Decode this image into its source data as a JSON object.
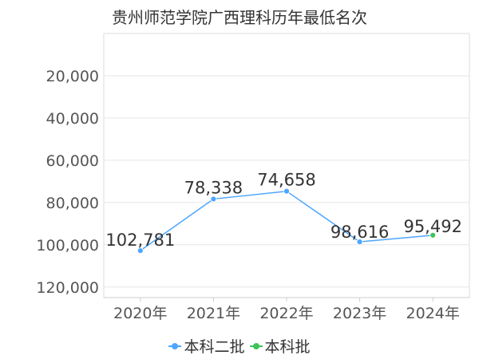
{
  "chart_data": {
    "type": "line",
    "title": "贵州师范学院广西理科历年最低名次",
    "categories": [
      "2020年",
      "2021年",
      "2022年",
      "2023年",
      "2024年"
    ],
    "y_axis": {
      "reversed": true,
      "ylim": [
        0,
        125000
      ],
      "ticks": [
        20000,
        40000,
        60000,
        80000,
        100000,
        120000
      ],
      "tick_labels": [
        "20,000",
        "40,000",
        "60,000",
        "80,000",
        "100,000",
        "120,000"
      ]
    },
    "grid": true,
    "legend_position": "bottom",
    "series": [
      {
        "name": "本科二批",
        "color": "#4da6ff",
        "values": [
          102781,
          78338,
          74658,
          98616,
          null
        ],
        "labels": [
          "102,781",
          "78,338",
          "74,658",
          "98,616",
          null
        ]
      },
      {
        "name": "本科批",
        "color": "#3cc45a",
        "values": [
          null,
          null,
          null,
          null,
          95492
        ],
        "labels": [
          null,
          null,
          null,
          null,
          "95,492"
        ]
      }
    ],
    "connect_series": true
  }
}
